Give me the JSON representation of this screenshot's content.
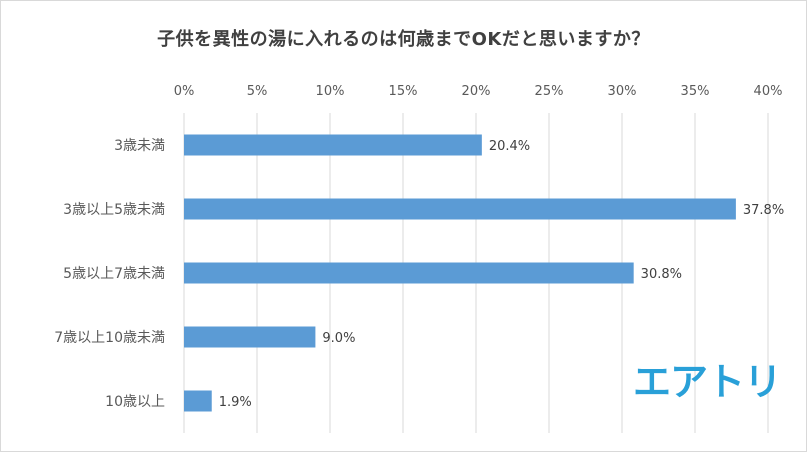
{
  "chart_data": {
    "type": "bar",
    "orientation": "horizontal",
    "title": "子供を異性の湯に入れるのは何歳までOKだと思いますか？",
    "categories": [
      "3歳未満",
      "3歳以上5歳未満",
      "5歳以上7歳未満",
      "7歳以上10歳未満",
      "10歳以上"
    ],
    "values": [
      20.4,
      37.8,
      30.8,
      9.0,
      1.9
    ],
    "data_labels": [
      "20.4%",
      "37.8%",
      "30.8%",
      "9.0%",
      "1.9%"
    ],
    "x_ticks": [
      "0%",
      "5%",
      "10%",
      "15%",
      "20%",
      "25%",
      "30%",
      "35%",
      "40%"
    ],
    "xlim": [
      0,
      40
    ],
    "grid": true,
    "bar_color": "#5b9bd5"
  },
  "logo": {
    "text": "エアトリ",
    "color": "#29a0d8"
  }
}
